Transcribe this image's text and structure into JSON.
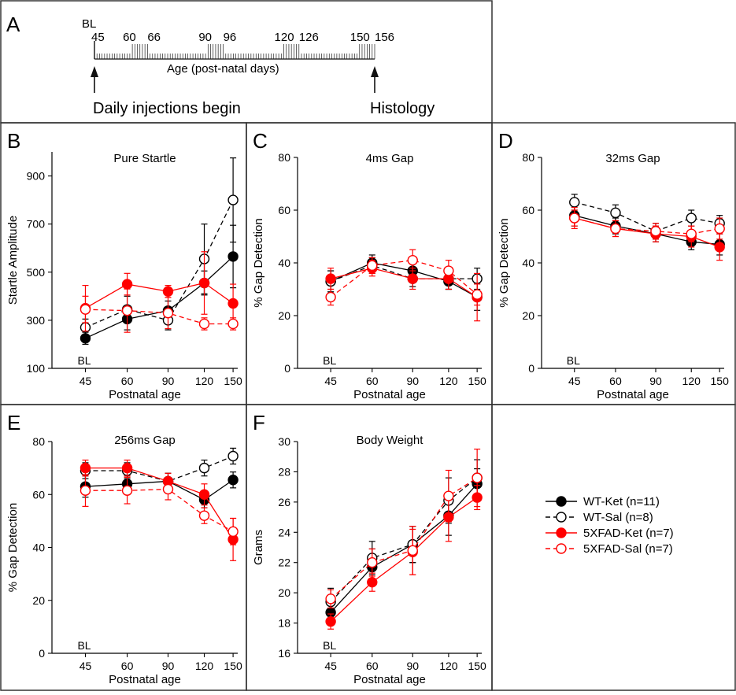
{
  "colors": {
    "wt": "#000000",
    "fad": "#ff0000",
    "frame": "#333333"
  },
  "timeline": {
    "panel_letter": "A",
    "bl_label": "BL",
    "ticks": [
      "45",
      "60",
      "66",
      "90",
      "96",
      "120",
      "126",
      "150",
      "156"
    ],
    "axis_label": "Age (post-natal days)",
    "start_label": "Daily injections begin",
    "end_label": "Histology"
  },
  "legend": [
    {
      "label": "WT-Ket (n=11)",
      "key": "wt_ket"
    },
    {
      "label": "WT-Sal (n=8)",
      "key": "wt_sal"
    },
    {
      "label": "5XFAD-Ket (n=7)",
      "key": "fad_ket"
    },
    {
      "label": "5XFAD-Sal (n=7)",
      "key": "fad_sal"
    }
  ],
  "chart_data": [
    {
      "panel": "B",
      "type": "line",
      "title": "Pure Startle",
      "xlabel": "Postnatal age",
      "ylabel": "Startle Amplitude",
      "categories": [
        "45",
        "60",
        "90",
        "120",
        "150"
      ],
      "ylim": [
        100,
        1000
      ],
      "yticks": [
        100,
        300,
        500,
        700,
        900
      ],
      "baseline_label": "BL",
      "series": [
        {
          "name": "WT-Ket",
          "key": "wt_ket",
          "values": [
            225,
            305,
            340,
            455,
            565
          ],
          "errors": [
            25,
            45,
            40,
            50,
            130
          ]
        },
        {
          "name": "WT-Sal",
          "key": "wt_sal",
          "values": [
            270,
            345,
            300,
            555,
            800
          ],
          "errors": [
            35,
            55,
            40,
            145,
            175
          ]
        },
        {
          "name": "5XFAD-Ket",
          "key": "fad_ket",
          "values": [
            350,
            450,
            420,
            455,
            370
          ],
          "errors": [
            95,
            45,
            25,
            130,
            80
          ]
        },
        {
          "name": "5XFAD-Sal",
          "key": "fad_sal",
          "values": [
            345,
            340,
            330,
            285,
            285
          ],
          "errors": [
            55,
            90,
            65,
            25,
            25
          ]
        }
      ]
    },
    {
      "panel": "C",
      "type": "line",
      "title": "4ms Gap",
      "xlabel": "Postnatal age",
      "ylabel": "% Gap Detection",
      "categories": [
        "45",
        "60",
        "90",
        "120",
        "150"
      ],
      "ylim": [
        0,
        80
      ],
      "yticks": [
        0,
        20,
        40,
        60,
        80
      ],
      "baseline_label": "BL",
      "series": [
        {
          "name": "WT-Ket",
          "key": "wt_ket",
          "values": [
            33,
            40,
            37,
            33,
            27
          ],
          "errors": [
            4,
            3,
            3,
            3,
            5
          ]
        },
        {
          "name": "WT-Sal",
          "key": "wt_sal",
          "values": [
            33,
            39,
            34,
            34,
            34
          ],
          "errors": [
            4,
            3,
            3,
            4,
            4
          ]
        },
        {
          "name": "5XFAD-Ket",
          "key": "fad_ket",
          "values": [
            34,
            38,
            34,
            34,
            27
          ],
          "errors": [
            4,
            3,
            4,
            4,
            9
          ]
        },
        {
          "name": "5XFAD-Sal",
          "key": "fad_sal",
          "values": [
            27,
            39,
            41,
            37,
            28
          ],
          "errors": [
            3,
            3,
            4,
            4,
            4
          ]
        }
      ]
    },
    {
      "panel": "D",
      "type": "line",
      "title": "32ms Gap",
      "xlabel": "Postnatal age",
      "ylabel": "% Gap Detection",
      "categories": [
        "45",
        "60",
        "90",
        "120",
        "150"
      ],
      "ylim": [
        0,
        80
      ],
      "yticks": [
        0,
        20,
        40,
        60,
        80
      ],
      "baseline_label": "BL",
      "series": [
        {
          "name": "WT-Ket",
          "key": "wt_ket",
          "values": [
            58,
            54,
            51,
            48,
            47
          ],
          "errors": [
            4,
            3,
            3,
            3,
            4
          ]
        },
        {
          "name": "WT-Sal",
          "key": "wt_sal",
          "values": [
            63,
            59,
            52,
            57,
            55
          ],
          "errors": [
            3,
            3,
            3,
            3,
            3
          ]
        },
        {
          "name": "5XFAD-Ket",
          "key": "fad_ket",
          "values": [
            57,
            53,
            51,
            50,
            46
          ],
          "errors": [
            4,
            3,
            3,
            4,
            5
          ]
        },
        {
          "name": "5XFAD-Sal",
          "key": "fad_sal",
          "values": [
            57,
            53,
            52,
            51,
            53
          ],
          "errors": [
            3,
            3,
            3,
            3,
            4
          ]
        }
      ]
    },
    {
      "panel": "E",
      "type": "line",
      "title": "256ms Gap",
      "xlabel": "Postnatal age",
      "ylabel": "% Gap Detection",
      "categories": [
        "45",
        "60",
        "90",
        "120",
        "150"
      ],
      "ylim": [
        0,
        80
      ],
      "yticks": [
        0,
        20,
        40,
        60,
        80
      ],
      "baseline_label": "BL",
      "series": [
        {
          "name": "WT-Ket",
          "key": "wt_ket",
          "values": [
            63,
            64,
            65,
            58,
            65.5
          ],
          "errors": [
            4,
            3,
            3,
            3,
            3
          ]
        },
        {
          "name": "WT-Sal",
          "key": "wt_sal",
          "values": [
            69,
            69,
            65,
            70,
            74.5
          ],
          "errors": [
            3,
            3,
            3,
            3,
            3
          ]
        },
        {
          "name": "5XFAD-Ket",
          "key": "fad_ket",
          "values": [
            70,
            70,
            65,
            60,
            43
          ],
          "errors": [
            3,
            3,
            3,
            4,
            8
          ]
        },
        {
          "name": "5XFAD-Sal",
          "key": "fad_sal",
          "values": [
            61.5,
            61.5,
            62,
            52,
            46
          ],
          "errors": [
            6,
            5,
            4,
            3,
            5
          ]
        }
      ]
    },
    {
      "panel": "F",
      "type": "line",
      "title": "Body Weight",
      "xlabel": "Postnatal age",
      "ylabel": "Grams",
      "categories": [
        "45",
        "60",
        "90",
        "120",
        "150"
      ],
      "ylim": [
        16,
        30
      ],
      "yticks": [
        16,
        18,
        20,
        22,
        24,
        26,
        28,
        30
      ],
      "baseline_label": "BL",
      "series": [
        {
          "name": "WT-Ket",
          "key": "wt_ket",
          "values": [
            18.7,
            21.7,
            23.2,
            25.1,
            27.2
          ],
          "errors": [
            0.5,
            1.2,
            1.2,
            1.3,
            1.0
          ]
        },
        {
          "name": "WT-Sal",
          "key": "wt_sal",
          "values": [
            19.4,
            22.3,
            23.2,
            26.1,
            27.6
          ],
          "errors": [
            0.9,
            1.1,
            1.2,
            1.5,
            1.2
          ]
        },
        {
          "name": "5XFAD-Ket",
          "key": "fad_ket",
          "values": [
            18.1,
            20.7,
            22.7,
            25.0,
            26.3
          ],
          "errors": [
            0.5,
            0.6,
            1.5,
            1.6,
            0.8
          ]
        },
        {
          "name": "5XFAD-Sal",
          "key": "fad_sal",
          "values": [
            19.6,
            22.0,
            22.8,
            26.4,
            27.6
          ],
          "errors": [
            0.6,
            0.9,
            1.6,
            1.7,
            1.9
          ]
        }
      ]
    }
  ]
}
